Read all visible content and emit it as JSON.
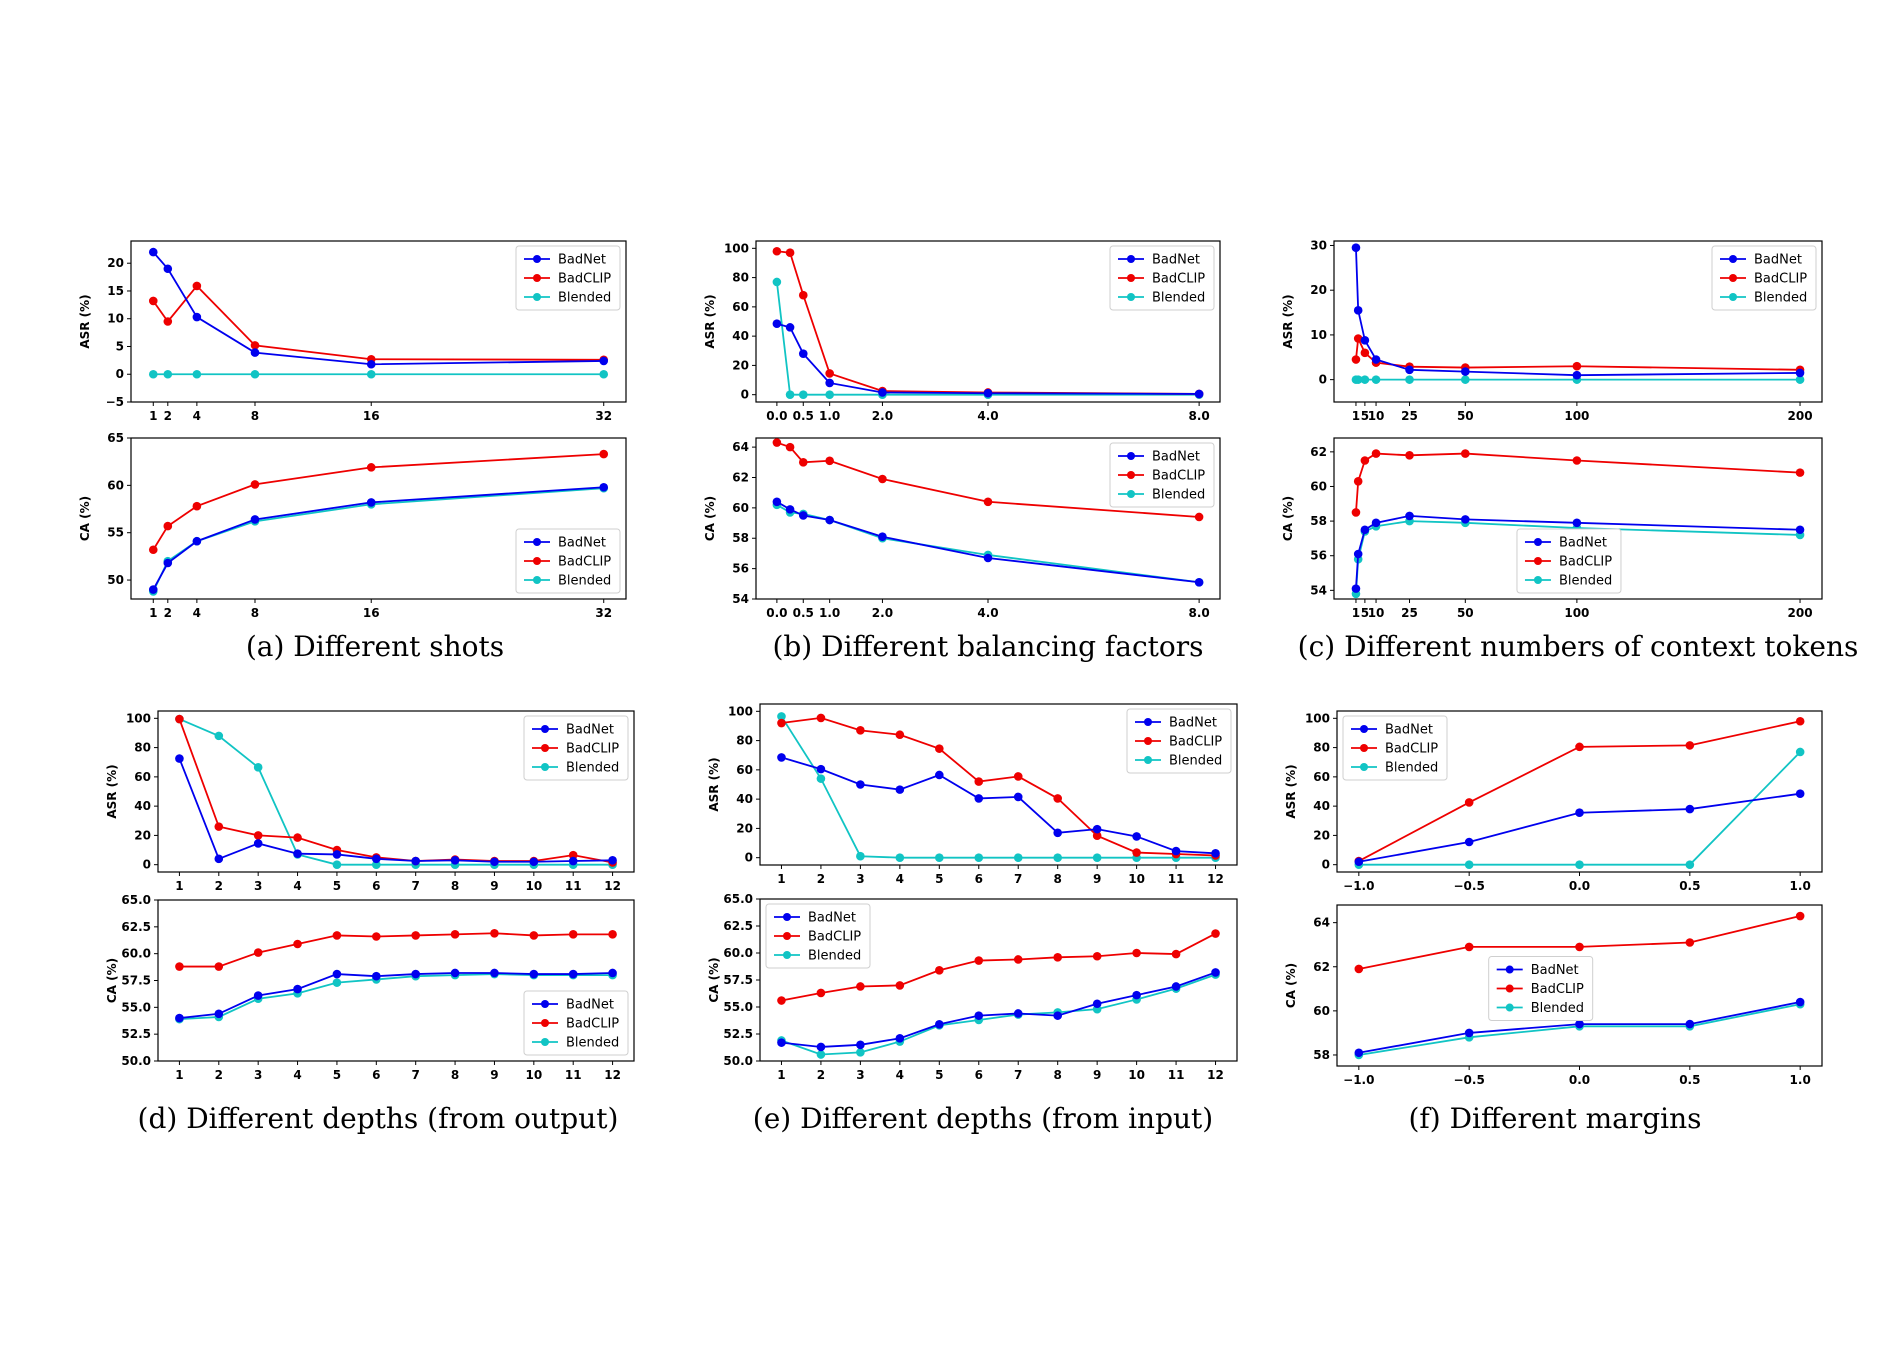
{
  "colors": {
    "BadNet": "#0000ee",
    "BadCLIP": "#ee0000",
    "Blended": "#11c4c4"
  },
  "legend_entries": [
    "BadNet",
    "BadCLIP",
    "Blended"
  ],
  "panels": [
    {
      "caption": "(a) Different shots",
      "x_ticks": [
        1,
        2,
        4,
        8,
        16,
        32
      ],
      "x_tick_labels": [
        "1",
        "2",
        "4",
        "8",
        "16",
        "32"
      ],
      "charts": [
        {
          "type": "line",
          "ylabel": "ASR (%)",
          "ylim": [
            -5,
            24
          ],
          "y_ticks": [
            -5,
            0,
            5,
            10,
            15,
            20
          ],
          "y_tick_labels": [
            "−5",
            "0",
            "5",
            "10",
            "15",
            "20"
          ],
          "legend": "top-right",
          "series": [
            {
              "name": "BadNet",
              "values": [
                22,
                19,
                10.3,
                3.9,
                1.8,
                2.4
              ]
            },
            {
              "name": "BadCLIP",
              "values": [
                13.2,
                9.5,
                15.9,
                5.2,
                2.7,
                2.6
              ]
            },
            {
              "name": "Blended",
              "values": [
                0,
                0,
                0,
                0,
                0,
                0
              ]
            }
          ]
        },
        {
          "type": "line",
          "ylabel": "CA (%)",
          "ylim": [
            48,
            65
          ],
          "y_ticks": [
            50,
            55,
            60,
            65
          ],
          "y_tick_labels": [
            "50",
            "55",
            "60",
            "65"
          ],
          "legend": "bottom-right",
          "series": [
            {
              "name": "BadNet",
              "values": [
                49,
                51.8,
                54.1,
                56.4,
                58.2,
                59.8
              ]
            },
            {
              "name": "BadCLIP",
              "values": [
                53.2,
                55.7,
                57.8,
                60.1,
                61.9,
                63.3
              ]
            },
            {
              "name": "Blended",
              "values": [
                48.8,
                52,
                54.1,
                56.2,
                58,
                59.7
              ]
            }
          ]
        }
      ]
    },
    {
      "caption": "(b) Different balancing factors",
      "x_ticks": [
        0,
        0.5,
        1,
        2,
        4,
        8
      ],
      "x_tick_labels": [
        "0.0",
        "0.5",
        "1.0",
        "2.0",
        "4.0",
        "8.0"
      ],
      "x_values": [
        0,
        0.25,
        0.5,
        1,
        2,
        4,
        8
      ],
      "charts": [
        {
          "type": "line",
          "ylabel": "ASR (%)",
          "ylim": [
            -5,
            105
          ],
          "y_ticks": [
            0,
            20,
            40,
            60,
            80,
            100
          ],
          "y_tick_labels": [
            "0",
            "20",
            "40",
            "60",
            "80",
            "100"
          ],
          "legend": "top-right",
          "series": [
            {
              "name": "BadNet",
              "values": [
                48.5,
                46,
                28,
                8,
                1.5,
                1,
                0.5
              ]
            },
            {
              "name": "BadCLIP",
              "values": [
                98,
                97,
                68,
                14.5,
                2.5,
                1.5,
                0.5
              ]
            },
            {
              "name": "Blended",
              "values": [
                77,
                0,
                0,
                0,
                0,
                0,
                0
              ]
            }
          ]
        },
        {
          "type": "line",
          "ylabel": "CA (%)",
          "ylim": [
            54,
            64.6
          ],
          "y_ticks": [
            54,
            56,
            58,
            60,
            62,
            64
          ],
          "y_tick_labels": [
            "54",
            "56",
            "58",
            "60",
            "62",
            "64"
          ],
          "legend": "top-right",
          "series": [
            {
              "name": "BadNet",
              "values": [
                60.4,
                59.9,
                59.5,
                59.2,
                58.1,
                56.7,
                55.1
              ]
            },
            {
              "name": "BadCLIP",
              "values": [
                64.3,
                64,
                63,
                63.1,
                61.9,
                60.4,
                59.4
              ]
            },
            {
              "name": "Blended",
              "values": [
                60.2,
                59.7,
                59.6,
                59.2,
                58,
                56.9,
                55.1
              ]
            }
          ]
        }
      ]
    },
    {
      "caption": "(c) Different numbers of context tokens",
      "x_ticks": [
        1,
        5,
        10,
        25,
        50,
        100,
        200
      ],
      "x_tick_labels": [
        "1",
        "5",
        "10",
        "25",
        "50",
        "100",
        "200"
      ],
      "x_values": [
        1,
        2,
        5,
        10,
        25,
        50,
        100,
        200
      ],
      "charts": [
        {
          "type": "line",
          "ylabel": "ASR (%)",
          "ylim": [
            -5,
            31
          ],
          "y_ticks": [
            0,
            10,
            20,
            30
          ],
          "y_tick_labels": [
            "0",
            "10",
            "20",
            "30"
          ],
          "legend": "top-right",
          "series": [
            {
              "name": "BadNet",
              "values": [
                29.5,
                15.5,
                8.8,
                4.5,
                2.2,
                1.8,
                1,
                1.5
              ]
            },
            {
              "name": "BadCLIP",
              "values": [
                4.5,
                9.2,
                6,
                3.8,
                2.9,
                2.7,
                3,
                2.2
              ]
            },
            {
              "name": "Blended",
              "values": [
                0,
                0,
                0,
                0,
                0,
                0,
                0,
                0
              ]
            }
          ]
        },
        {
          "type": "line",
          "ylabel": "CA (%)",
          "ylim": [
            53.5,
            62.8
          ],
          "y_ticks": [
            54,
            56,
            58,
            60,
            62
          ],
          "y_tick_labels": [
            "54",
            "56",
            "58",
            "60",
            "62"
          ],
          "legend": "bottom-center",
          "series": [
            {
              "name": "BadNet",
              "values": [
                54.1,
                56.1,
                57.5,
                57.9,
                58.3,
                58.1,
                57.9,
                57.5
              ]
            },
            {
              "name": "BadCLIP",
              "values": [
                58.5,
                60.3,
                61.5,
                61.9,
                61.8,
                61.9,
                61.5,
                60.8
              ]
            },
            {
              "name": "Blended",
              "values": [
                53.8,
                55.8,
                57.4,
                57.7,
                58,
                57.9,
                57.6,
                57.2
              ]
            }
          ]
        }
      ]
    },
    {
      "caption": "(d) Different depths (from output)",
      "x_ticks": [
        1,
        2,
        3,
        4,
        5,
        6,
        7,
        8,
        9,
        10,
        11,
        12
      ],
      "x_tick_labels": [
        "1",
        "2",
        "3",
        "4",
        "5",
        "6",
        "7",
        "8",
        "9",
        "10",
        "11",
        "12"
      ],
      "charts": [
        {
          "type": "line",
          "ylabel": "ASR (%)",
          "ylim": [
            -5,
            105
          ],
          "y_ticks": [
            0,
            20,
            40,
            60,
            80,
            100
          ],
          "y_tick_labels": [
            "0",
            "20",
            "40",
            "60",
            "80",
            "100"
          ],
          "legend": "top-right",
          "series": [
            {
              "name": "BadNet",
              "values": [
                72.5,
                4,
                14.5,
                7.5,
                7,
                4,
                2.5,
                3,
                2,
                2,
                2.5,
                3
              ]
            },
            {
              "name": "BadCLIP",
              "values": [
                99.5,
                26,
                20,
                18.5,
                10,
                5,
                2.5,
                3.5,
                2.5,
                2.5,
                6.5,
                1.5
              ]
            },
            {
              "name": "Blended",
              "values": [
                99.5,
                88,
                66.5,
                7,
                0,
                0,
                0,
                0,
                0,
                0,
                0,
                0
              ]
            }
          ]
        },
        {
          "type": "line",
          "ylabel": "CA (%)",
          "ylim": [
            50,
            65
          ],
          "y_ticks": [
            50,
            52.5,
            55,
            57.5,
            60,
            62.5,
            65
          ],
          "y_tick_labels": [
            "50.0",
            "52.5",
            "55.0",
            "57.5",
            "60.0",
            "62.5",
            "65.0"
          ],
          "legend": "bottom-right",
          "series": [
            {
              "name": "BadNet",
              "values": [
                54,
                54.4,
                56.1,
                56.7,
                58.1,
                57.9,
                58.1,
                58.2,
                58.2,
                58.1,
                58.1,
                58.2
              ]
            },
            {
              "name": "BadCLIP",
              "values": [
                58.8,
                58.8,
                60.1,
                60.9,
                61.7,
                61.6,
                61.7,
                61.8,
                61.9,
                61.7,
                61.8,
                61.8
              ]
            },
            {
              "name": "Blended",
              "values": [
                53.9,
                54.1,
                55.8,
                56.3,
                57.3,
                57.6,
                57.9,
                58,
                58.1,
                58,
                58,
                58
              ]
            }
          ]
        }
      ]
    },
    {
      "caption": "(e) Different depths (from input)",
      "x_ticks": [
        1,
        2,
        3,
        4,
        5,
        6,
        7,
        8,
        9,
        10,
        11,
        12
      ],
      "x_tick_labels": [
        "1",
        "2",
        "3",
        "4",
        "5",
        "6",
        "7",
        "8",
        "9",
        "10",
        "11",
        "12"
      ],
      "charts": [
        {
          "type": "line",
          "ylabel": "ASR (%)",
          "ylim": [
            -5,
            105
          ],
          "y_ticks": [
            0,
            20,
            40,
            60,
            80,
            100
          ],
          "y_tick_labels": [
            "0",
            "20",
            "40",
            "60",
            "80",
            "100"
          ],
          "legend": "top-right",
          "series": [
            {
              "name": "BadNet",
              "values": [
                68.5,
                60.5,
                50,
                46.5,
                56.5,
                40.5,
                41.5,
                17,
                19.5,
                14.5,
                4.5,
                3
              ]
            },
            {
              "name": "BadCLIP",
              "values": [
                92,
                95.5,
                87,
                84,
                74.5,
                52,
                55.5,
                40.5,
                15,
                3.5,
                2.5,
                1.5
              ]
            },
            {
              "name": "Blended",
              "values": [
                96.5,
                54,
                1,
                0,
                0,
                0,
                0,
                0,
                0,
                0,
                0,
                0
              ]
            }
          ]
        },
        {
          "type": "line",
          "ylabel": "CA (%)",
          "ylim": [
            50,
            65
          ],
          "y_ticks": [
            50,
            52.5,
            55,
            57.5,
            60,
            62.5,
            65
          ],
          "y_tick_labels": [
            "50.0",
            "52.5",
            "55.0",
            "57.5",
            "60.0",
            "62.5",
            "65.0"
          ],
          "legend": "top-left",
          "series": [
            {
              "name": "BadNet",
              "values": [
                51.7,
                51.3,
                51.5,
                52.1,
                53.4,
                54.2,
                54.4,
                54.2,
                55.3,
                56.1,
                56.9,
                58.2
              ]
            },
            {
              "name": "BadCLIP",
              "values": [
                55.6,
                56.3,
                56.9,
                57,
                58.4,
                59.3,
                59.4,
                59.6,
                59.7,
                60,
                59.9,
                61.8
              ]
            },
            {
              "name": "Blended",
              "values": [
                51.9,
                50.6,
                50.8,
                51.8,
                53.3,
                53.8,
                54.3,
                54.5,
                54.8,
                55.7,
                56.7,
                58
              ]
            }
          ]
        }
      ]
    },
    {
      "caption": "(f) Different margins",
      "x_ticks": [
        -1,
        -0.5,
        0,
        0.5,
        1
      ],
      "x_tick_labels": [
        "−1.0",
        "−0.5",
        "0.0",
        "0.5",
        "1.0"
      ],
      "charts": [
        {
          "type": "line",
          "ylabel": "ASR (%)",
          "ylim": [
            -5,
            105
          ],
          "y_ticks": [
            0,
            20,
            40,
            60,
            80,
            100
          ],
          "y_tick_labels": [
            "0",
            "20",
            "40",
            "60",
            "80",
            "100"
          ],
          "legend": "top-left",
          "series": [
            {
              "name": "BadNet",
              "values": [
                2,
                15.5,
                35.5,
                38,
                48.5
              ]
            },
            {
              "name": "BadCLIP",
              "values": [
                2.5,
                42.5,
                80.5,
                81.5,
                98
              ]
            },
            {
              "name": "Blended",
              "values": [
                0,
                0,
                0,
                0,
                77
              ]
            }
          ]
        },
        {
          "type": "line",
          "ylabel": "CA (%)",
          "ylim": [
            57.5,
            64.8
          ],
          "y_ticks": [
            58,
            60,
            62,
            64
          ],
          "y_tick_labels": [
            "58",
            "60",
            "62",
            "64"
          ],
          "legend": "center",
          "series": [
            {
              "name": "BadNet",
              "values": [
                58.1,
                59,
                59.4,
                59.4,
                60.4
              ]
            },
            {
              "name": "BadCLIP",
              "values": [
                61.9,
                62.9,
                62.9,
                63.1,
                64.3
              ]
            },
            {
              "name": "Blended",
              "values": [
                58,
                58.8,
                59.3,
                59.3,
                60.3
              ]
            }
          ]
        }
      ]
    }
  ]
}
